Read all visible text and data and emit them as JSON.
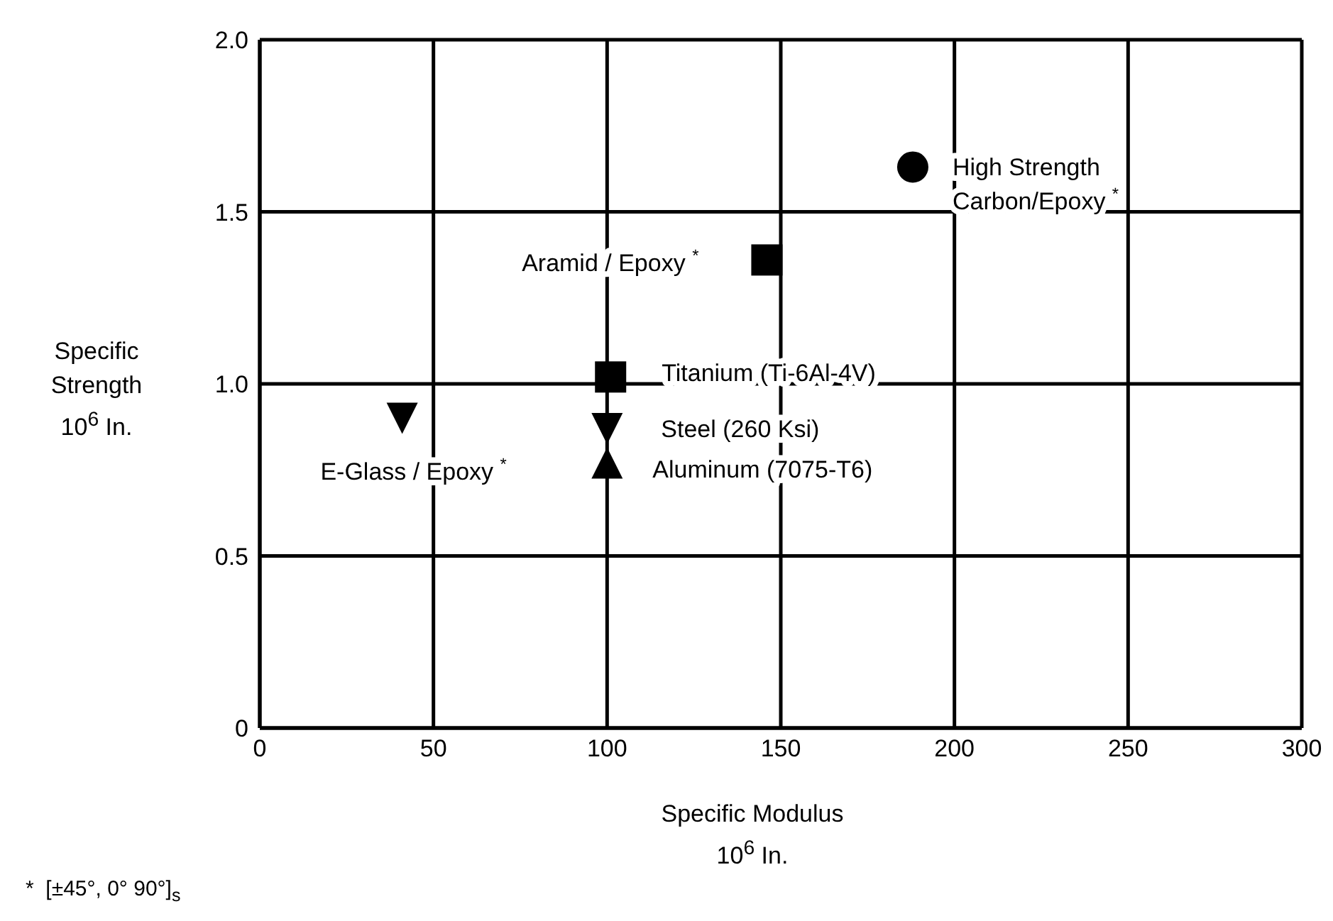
{
  "chart_data": {
    "type": "scatter",
    "xlabel": "Specific Modulus 10$^{6}$ In.",
    "ylabel": "Specific Strength 10$^{6}$ In.",
    "xlim": [
      0,
      300
    ],
    "xticks": [
      0,
      50,
      100,
      150,
      200,
      250,
      300
    ],
    "ylim": [
      0,
      2
    ],
    "yticks": [
      0,
      {
        "value": 0.5,
        "label": "0.5"
      },
      {
        "value": 1,
        "label": "1.0"
      },
      {
        "value": 1.5,
        "label": "1.5"
      },
      {
        "value": 2,
        "label": "2.0"
      }
    ],
    "grid": true,
    "series": [
      {
        "name": "High Strength Carbon/Epoxy $^{*}$",
        "color": "#000000",
        "marker": "circle",
        "x": [
          188
        ],
        "values": [
          1.63
        ]
      },
      {
        "name": "Aramid / Epoxy $^{*}$",
        "color": "#000000",
        "marker": "square",
        "x": [
          146
        ],
        "values": [
          1.36
        ]
      },
      {
        "name": "Titanium (Ti-6Al-4V)",
        "color": "#000000",
        "marker": "square",
        "x": [
          101
        ],
        "values": [
          1.02
        ]
      },
      {
        "name": "Steel (260 Ksi)",
        "color": "#000000",
        "marker": "triangle-down",
        "x": [
          100
        ],
        "values": [
          0.87
        ]
      },
      {
        "name": "Aluminum (7075-T6)",
        "color": "#000000",
        "marker": "triangle",
        "x": [
          100
        ],
        "values": [
          0.77
        ]
      },
      {
        "name": "E-Glass / Epoxy $^{*}$",
        "color": "#000000",
        "marker": "triangle-down",
        "x": [
          41
        ],
        "values": [
          0.9
        ]
      }
    ],
    "annotations": [
      "*  [±45°, 0° 90°]$_{s}$"
    ]
  }
}
